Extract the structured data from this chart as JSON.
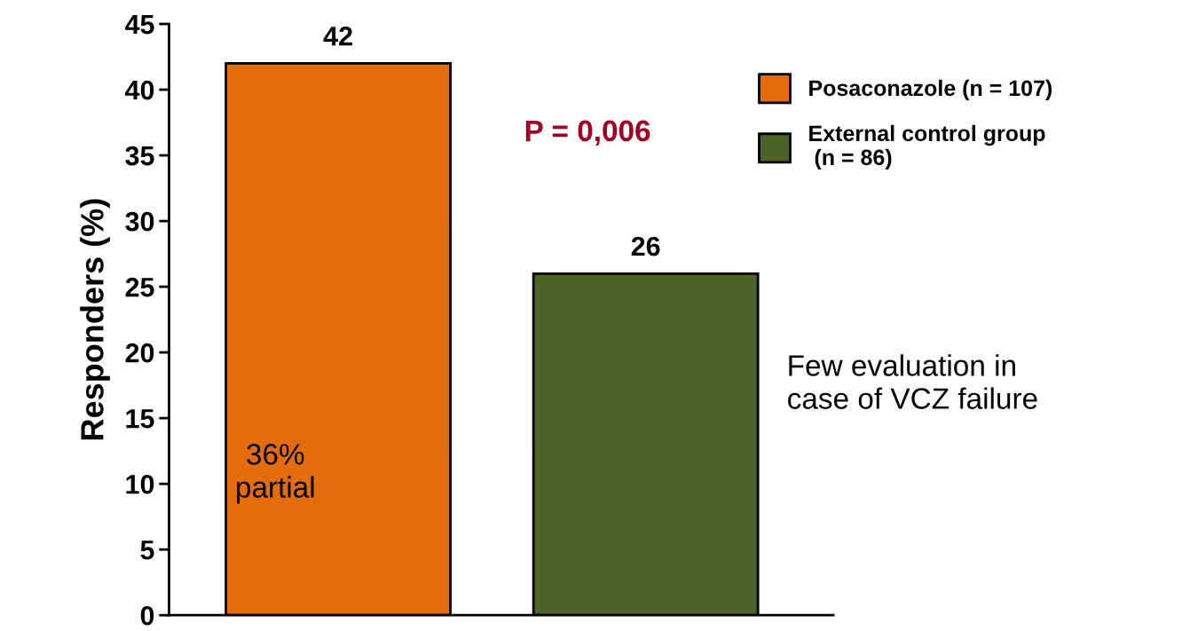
{
  "chart_data": {
    "type": "bar",
    "ylabel": "Responders (%)",
    "categories": [
      null,
      null
    ],
    "series": [
      {
        "name": "Posaconazole (n = 107)",
        "color": "#e46c0a",
        "values": [
          42,
          null
        ]
      },
      {
        "name": "External control group\n (n = 86)",
        "color": "#4f6228",
        "values": [
          null,
          26
        ]
      }
    ],
    "ylim": [
      0,
      45
    ],
    "yticks": [
      0,
      5,
      10,
      15,
      20,
      25,
      30,
      35,
      40,
      45
    ],
    "data_labels": true,
    "grid": false,
    "legend": "right",
    "tick_labels": "y",
    "annotations": [
      "P = 0,006",
      "36%\npartial",
      "Few evaluation in\ncase of VCZ failure"
    ]
  }
}
